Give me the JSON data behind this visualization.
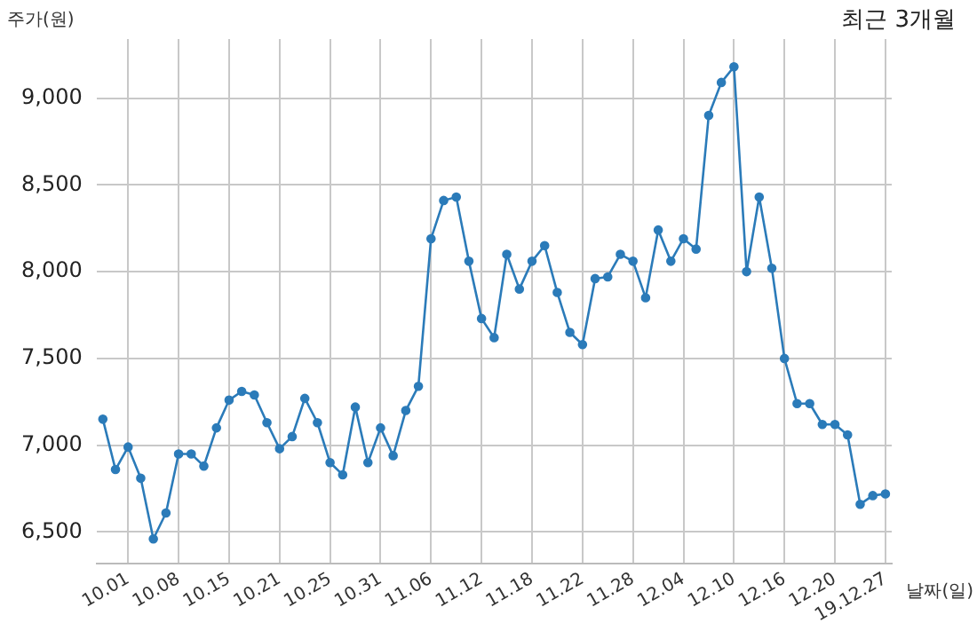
{
  "chart_data": {
    "type": "line",
    "title": "최근 3개월",
    "ylabel": "주가(원)",
    "xlabel": "날짜(일)",
    "categories": [
      null,
      null,
      "10.01",
      null,
      null,
      null,
      "10.08",
      null,
      null,
      null,
      "10.15",
      null,
      null,
      null,
      "10.21",
      null,
      null,
      null,
      "10.25",
      null,
      null,
      null,
      "10.31",
      null,
      null,
      null,
      "11.06",
      null,
      null,
      null,
      "11.12",
      null,
      null,
      null,
      "11.18",
      null,
      null,
      null,
      "11.22",
      null,
      null,
      null,
      "11.28",
      null,
      null,
      null,
      "12.04",
      null,
      null,
      null,
      "12.10",
      null,
      null,
      null,
      "12.16",
      null,
      null,
      null,
      "12.20",
      null,
      null,
      null,
      "19.12.27"
    ],
    "series": [
      {
        "color": "#2b7bb9",
        "values": [
          7150,
          6860,
          6990,
          6810,
          6460,
          6610,
          6950,
          6950,
          6880,
          7100,
          7260,
          7310,
          7290,
          7130,
          6980,
          7050,
          7270,
          7130,
          6900,
          6830,
          7220,
          6900,
          7100,
          6940,
          7200,
          7340,
          8190,
          8410,
          8430,
          8060,
          7730,
          7620,
          8100,
          7900,
          8060,
          8150,
          7880,
          7650,
          7580,
          7960,
          7970,
          8100,
          8060,
          7850,
          8240,
          8060,
          8190,
          8130,
          8900,
          9090,
          9180,
          8000,
          8430,
          8020,
          7500,
          7240,
          7240,
          7120,
          7120,
          7060,
          6660,
          6710,
          6720
        ]
      }
    ],
    "ylim": [
      6320,
      9340
    ],
    "yticks": [
      {
        "value": 6500,
        "label": "6,500"
      },
      {
        "value": 7000,
        "label": "7,000"
      },
      {
        "value": 7500,
        "label": "7,500"
      },
      {
        "value": 8000,
        "label": "8,000"
      },
      {
        "value": 8500,
        "label": "8,500"
      },
      {
        "value": 9000,
        "label": "9,000"
      }
    ],
    "grid": true,
    "legend": false,
    "marker": "circle",
    "line_style": "solid"
  }
}
